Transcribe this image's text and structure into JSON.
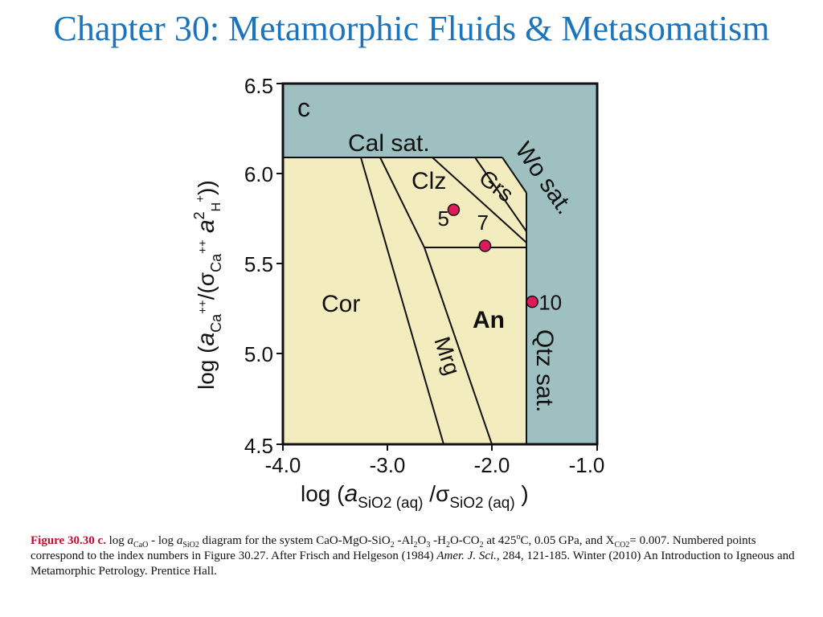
{
  "title": "Chapter 30: Metamorphic Fluids & Metasomatism",
  "diagram": {
    "panel_label": "c",
    "colors": {
      "saturated_region": "#9fc0c0",
      "stable_region": "#f3ecbf",
      "point": "#e0195a"
    },
    "x_axis": {
      "range": [
        -4.0,
        -1.0
      ],
      "ticks": [
        "-4.0",
        "-3.0",
        "-2.0",
        "-1.0"
      ],
      "label_prefix": "log (",
      "label_a": "a",
      "label_sub1": "SiO",
      "label_sub1b": "2 (aq)",
      "label_mid": " /σ",
      "label_sub2": "SiO",
      "label_sub2b": "2 (aq)",
      "label_suffix": " )"
    },
    "y_axis": {
      "range": [
        4.5,
        6.5
      ],
      "ticks": [
        "4.5",
        "5.0",
        "5.5",
        "6.0",
        "6.5"
      ],
      "label_prefix": "log (",
      "label_a": "a",
      "label_sub1": "Ca",
      "label_sup1": "++",
      "label_mid": "/(σ",
      "label_sub2": "Ca",
      "label_sup2": "++",
      "label_a2": " a",
      "label_sup3": "2",
      "label_sub3": "H",
      "label_sup4": "+",
      "label_suffix": "))"
    },
    "field_labels": {
      "cal_sat": "Cal sat.",
      "wo_sat": "Wo sat.",
      "qtz_sat": "Qtz sat.",
      "clz": "Clz",
      "grs": "Grs",
      "cor": "Cor",
      "an": "An",
      "mrg": "Mrg"
    },
    "points": [
      {
        "label": "5",
        "x": -2.37,
        "y": 5.8
      },
      {
        "label": "7",
        "x": -2.07,
        "y": 5.6
      },
      {
        "label": "10",
        "x": -1.62,
        "y": 5.29
      }
    ]
  },
  "caption": {
    "fig_label": "Figure 30.30 c.",
    "t1": " log ",
    "a1": "a",
    "s1": "CaO",
    "t2": " - log ",
    "a2": "a",
    "s2": "SiO2",
    "t3": " diagram for the system CaO-MgO-SiO",
    "s3": "2",
    "t4": " -Al",
    "s4": "2",
    "t5": "O",
    "s5": "3",
    "t6": " -H",
    "s6": "2",
    "t7": "O-CO",
    "s7": "2",
    "t8": " at 425",
    "sup1": "o",
    "t9": "C, 0.05 GPa, and X",
    "s8": "CO2",
    "t10": "= 0.007. Numbered points correspond to the index numbers in Figure 30.27. After Frisch and Helgeson (1984) ",
    "journal": "Amer. J. Sci.",
    "t11": ", 284, 121-185. Winter (2010) An Introduction to Igneous and Metamorphic Petrology. Prentice Hall."
  }
}
